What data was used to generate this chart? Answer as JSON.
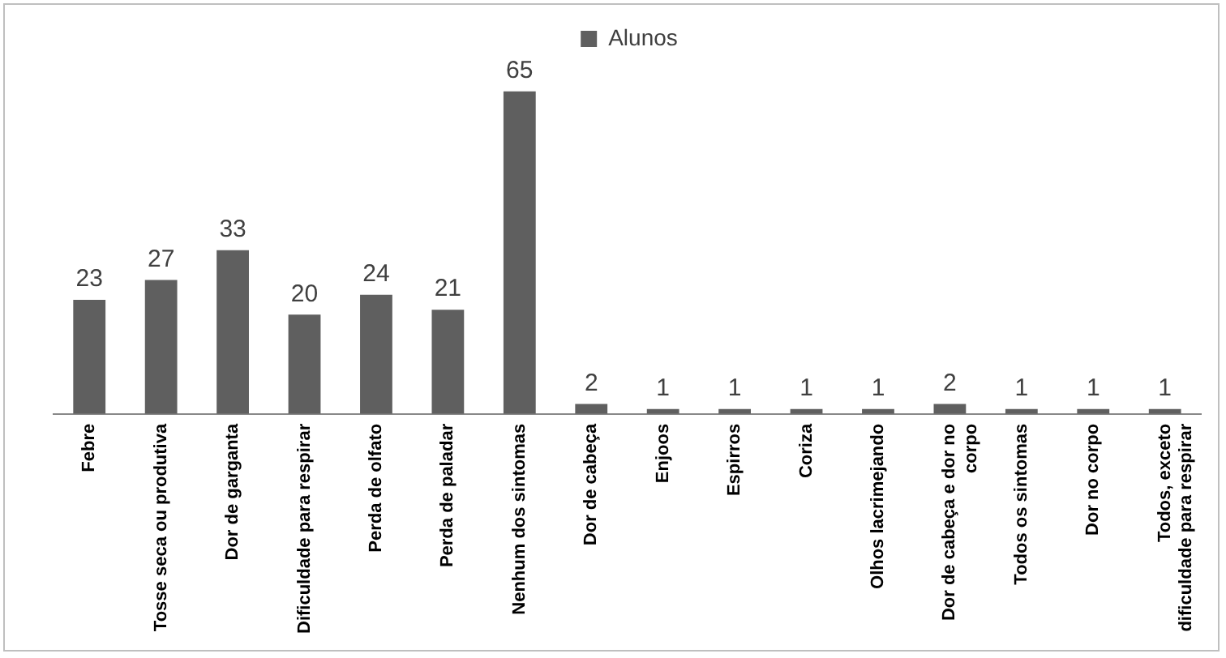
{
  "chart_data": {
    "type": "bar",
    "categories": [
      "Febre",
      "Tosse seca ou produtiva",
      "Dor de garganta",
      "Dificuldade para respirar",
      "Perda de olfato",
      "Perda de paladar",
      "Nenhum dos sintomas",
      "Dor de cabeça",
      "Enjoos",
      "Espirros",
      "Coriza",
      "Olhos lacrimejando",
      "Dor de cabeça e dor no corpo",
      "Todos os sintomas",
      "Dor no corpo",
      "Todos, exceto dificuldade para respirar"
    ],
    "series": [
      {
        "name": "Alunos",
        "color": "#5f5f5f",
        "values": [
          23,
          27,
          33,
          20,
          24,
          21,
          65,
          2,
          1,
          1,
          1,
          1,
          2,
          1,
          1,
          1
        ]
      }
    ],
    "data_labels": true,
    "legend": "top",
    "grid": false
  }
}
